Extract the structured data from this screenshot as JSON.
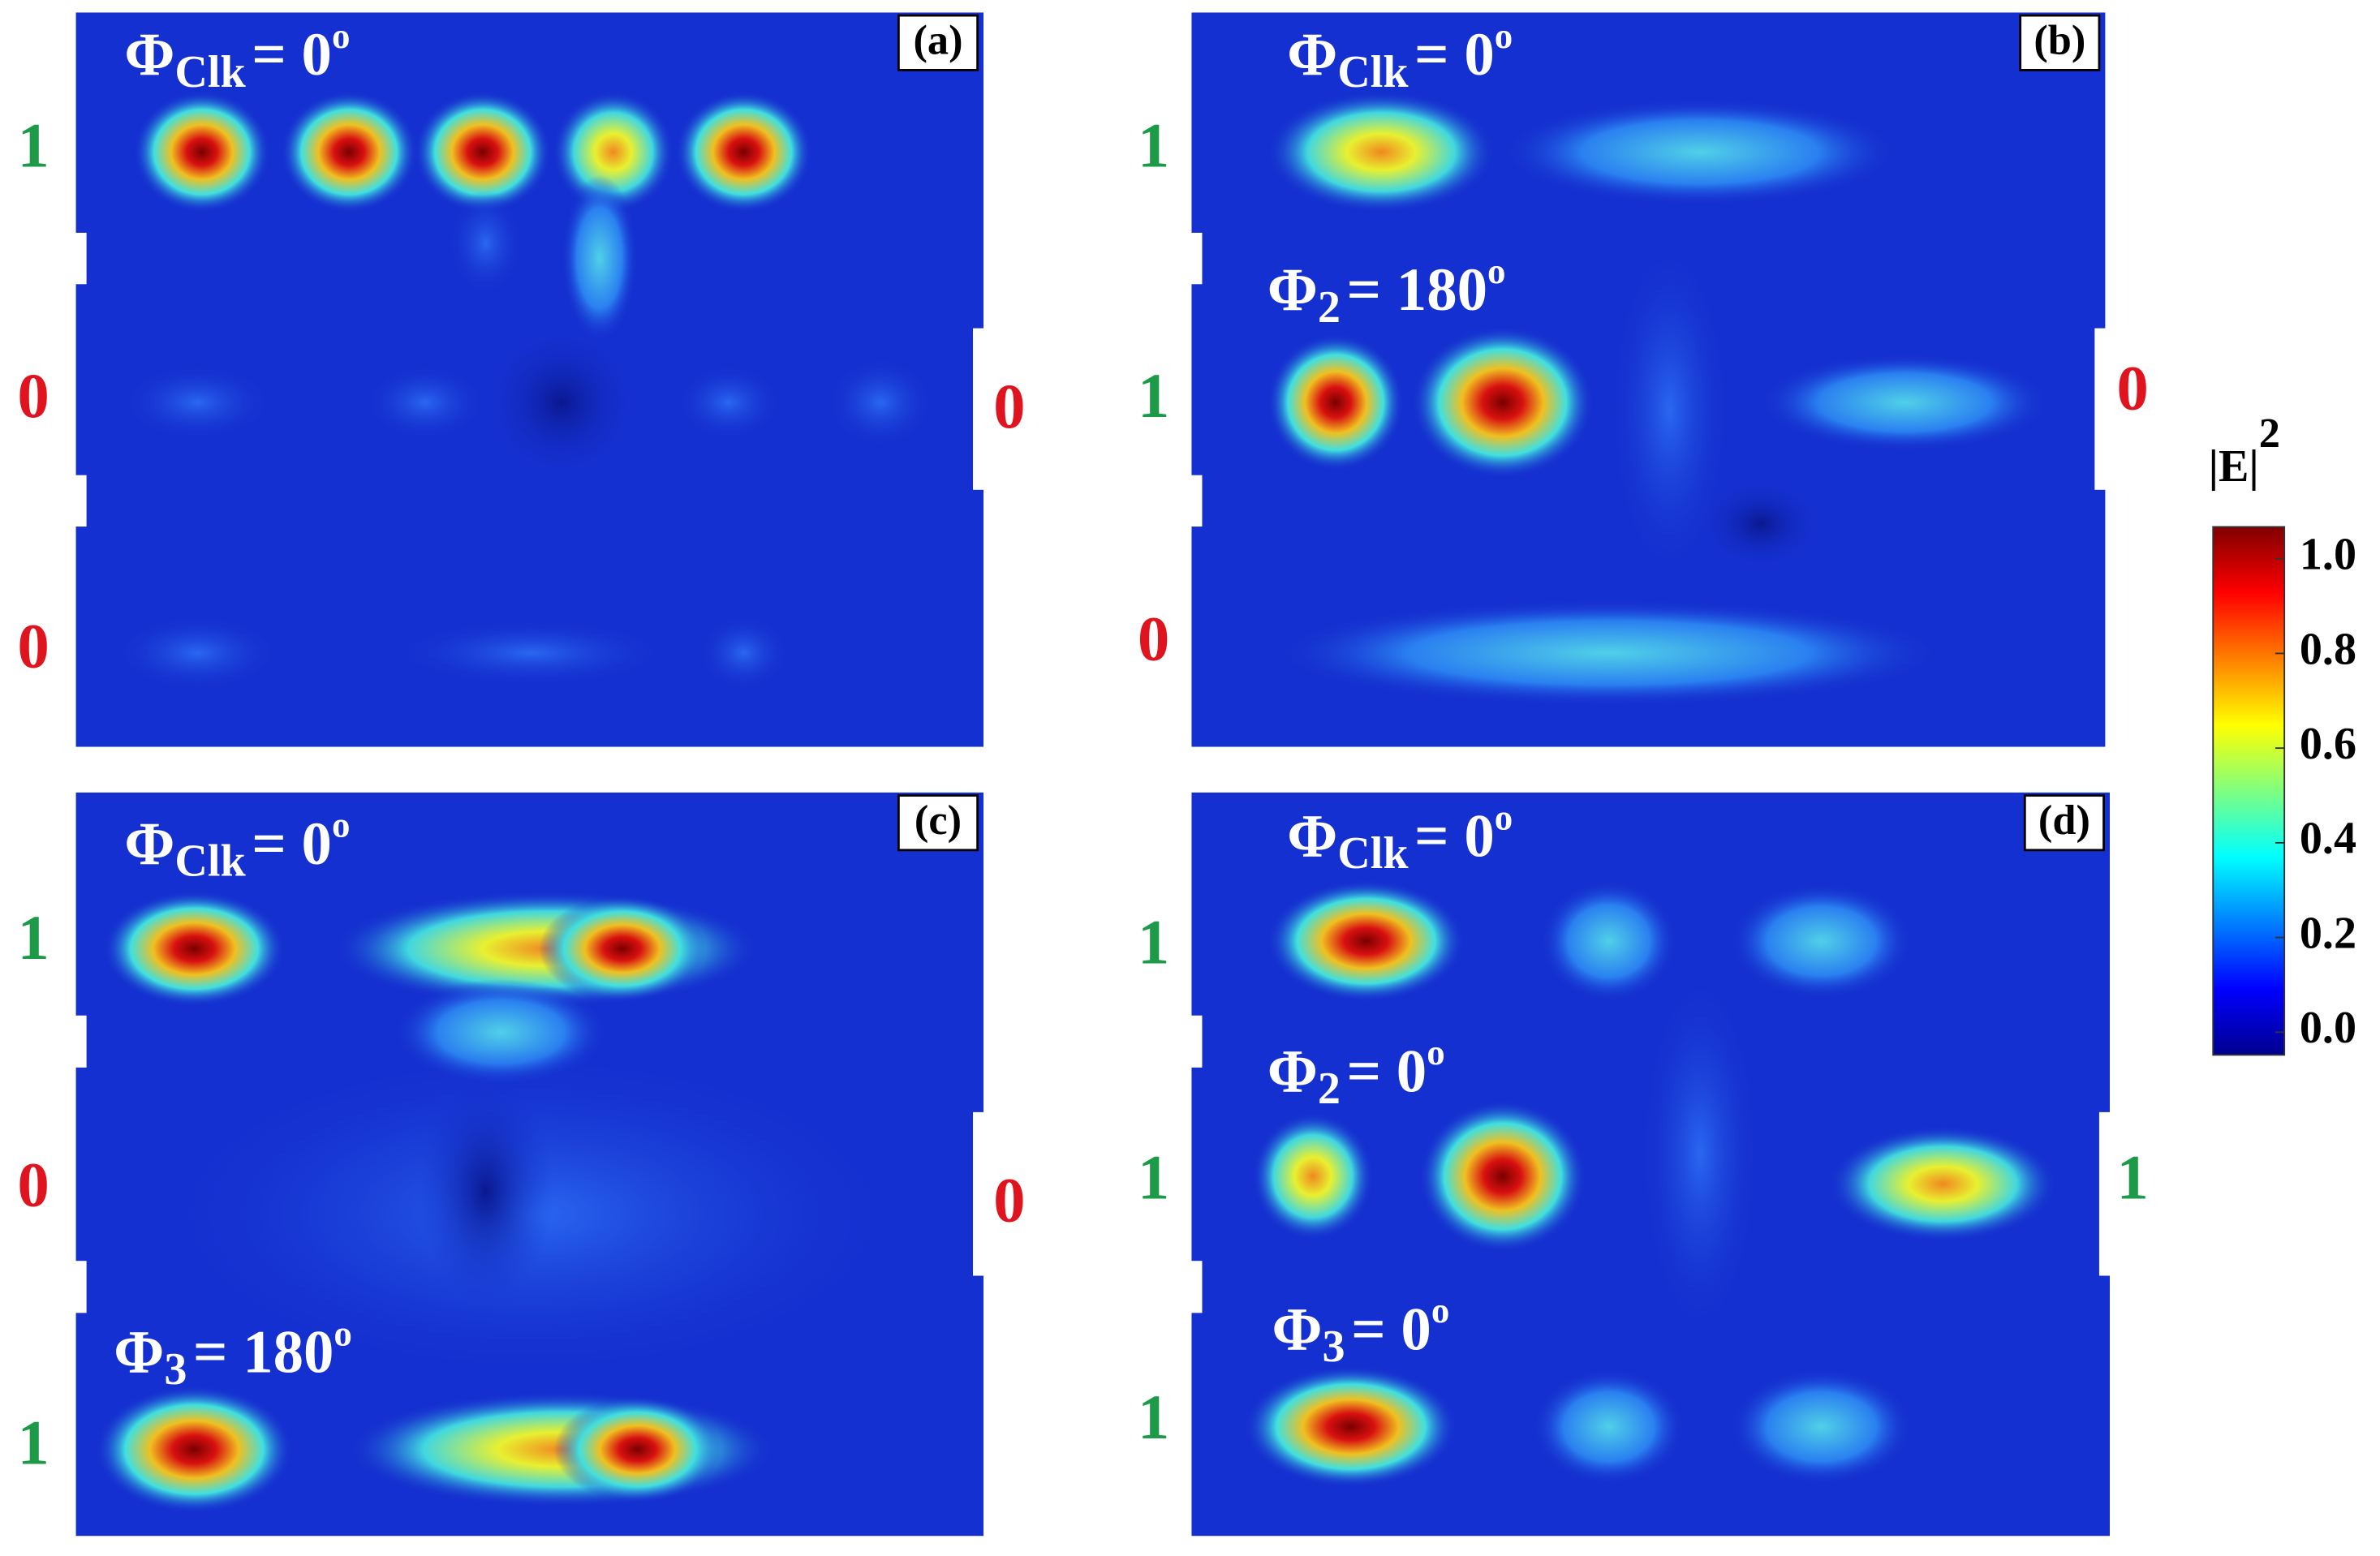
{
  "panels": [
    {
      "tag": "(a)",
      "inputs": [
        "1",
        "0",
        "0"
      ],
      "output": "0",
      "phases": [
        {
          "symbol": "Φ",
          "sub": "Clk",
          "text": "= 0",
          "sup": "o"
        }
      ]
    },
    {
      "tag": "(b)",
      "inputs": [
        "1",
        "1",
        "0"
      ],
      "output": "0",
      "phases": [
        {
          "symbol": "Φ",
          "sub": "Clk",
          "text": "= 0",
          "sup": "o"
        },
        {
          "symbol": "Φ",
          "sub": "2",
          "text": "= 180",
          "sup": "o"
        }
      ]
    },
    {
      "tag": "(c)",
      "inputs": [
        "1",
        "0",
        "1"
      ],
      "output": "0",
      "phases": [
        {
          "symbol": "Φ",
          "sub": "Clk",
          "text": "= 0",
          "sup": "o"
        },
        {
          "symbol": "Φ",
          "sub": "3",
          "text": "= 180",
          "sup": "o"
        }
      ]
    },
    {
      "tag": "(d)",
      "inputs": [
        "1",
        "1",
        "1"
      ],
      "output": "1",
      "phases": [
        {
          "symbol": "Φ",
          "sub": "Clk",
          "text": "= 0",
          "sup": "o"
        },
        {
          "symbol": "Φ",
          "sub": "2",
          "text": "= 0",
          "sup": "o"
        },
        {
          "symbol": "Φ",
          "sub": "3",
          "text": "= 0",
          "sup": "o"
        }
      ]
    }
  ],
  "colorbar": {
    "label": "|E|",
    "sup": "2",
    "range": [
      0,
      1
    ],
    "ticks": [
      {
        "value": 0,
        "label": "0.0"
      },
      {
        "value": 0.2,
        "label": "0.2"
      },
      {
        "value": 0.4,
        "label": "0.4"
      },
      {
        "value": 0.6,
        "label": "0.6"
      },
      {
        "value": 0.8,
        "label": "0.8"
      },
      {
        "value": 1,
        "label": "1.0"
      }
    ]
  }
}
